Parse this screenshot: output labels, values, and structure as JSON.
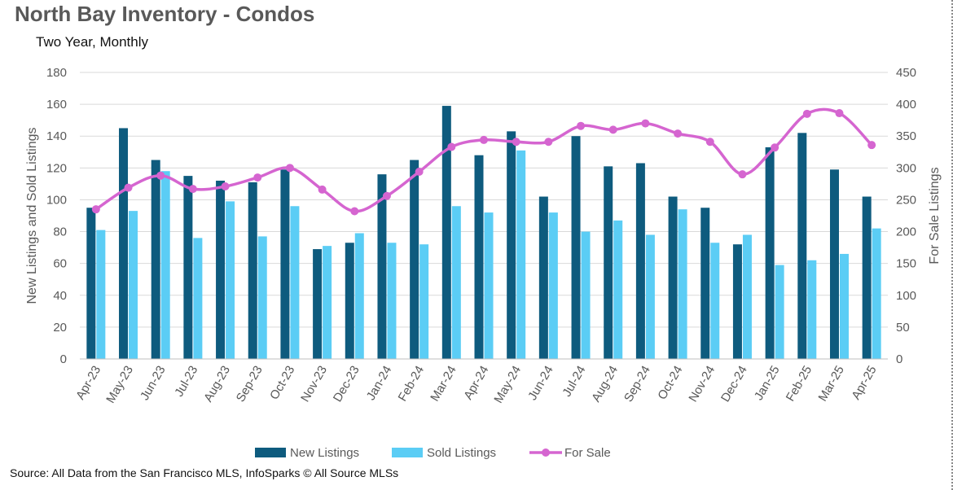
{
  "title": "North Bay Inventory - Condos",
  "subtitle": "Two Year, Monthly",
  "source": "Source: All Data from the San Francisco MLS, InfoSparks © All Source MLSs",
  "chart_data": {
    "type": "bar",
    "combo": "bar + line (secondary axis)",
    "categories": [
      "Apr-23",
      "May-23",
      "Jun-23",
      "Jul-23",
      "Aug-23",
      "Sep-23",
      "Oct-23",
      "Nov-23",
      "Dec-23",
      "Jan-24",
      "Feb-24",
      "Mar-24",
      "Apr-24",
      "May-24",
      "Jun-24",
      "Jul-24",
      "Aug-24",
      "Sep-24",
      "Oct-24",
      "Nov-24",
      "Dec-24",
      "Jan-25",
      "Feb-25",
      "Mar-25",
      "Apr-25"
    ],
    "series": [
      {
        "name": "New Listings",
        "type": "bar",
        "axis": "left",
        "color": "#0E5B7E",
        "values": [
          95,
          145,
          125,
          115,
          112,
          111,
          119,
          69,
          73,
          116,
          125,
          159,
          128,
          143,
          102,
          140,
          121,
          123,
          102,
          95,
          72,
          133,
          142,
          119,
          102
        ]
      },
      {
        "name": "Sold Listings",
        "type": "bar",
        "axis": "left",
        "color": "#5BCDF5",
        "values": [
          81,
          93,
          118,
          76,
          99,
          77,
          96,
          71,
          79,
          73,
          72,
          96,
          92,
          131,
          92,
          80,
          87,
          78,
          94,
          73,
          78,
          59,
          62,
          66,
          82
        ]
      },
      {
        "name": "For Sale",
        "type": "line",
        "axis": "right",
        "color": "#D565D0",
        "smooth": true,
        "markers": true,
        "values": [
          235,
          269,
          288,
          267,
          271,
          285,
          300,
          266,
          232,
          256,
          294,
          333,
          344,
          341,
          341,
          366,
          360,
          370,
          354,
          341,
          290,
          332,
          385,
          386,
          336
        ]
      }
    ],
    "ylabel": "New Listings and Sold Listings",
    "y2label": "For Sale Listings",
    "ylim": [
      0,
      180
    ],
    "yticks": [
      "0",
      "20",
      "40",
      "60",
      "80",
      "100",
      "120",
      "140",
      "160",
      "180"
    ],
    "y2lim": [
      0,
      450
    ],
    "y2ticks": [
      "0",
      "50",
      "100",
      "150",
      "200",
      "250",
      "300",
      "350",
      "400",
      "450"
    ],
    "grid": true,
    "legend": "bottom"
  }
}
